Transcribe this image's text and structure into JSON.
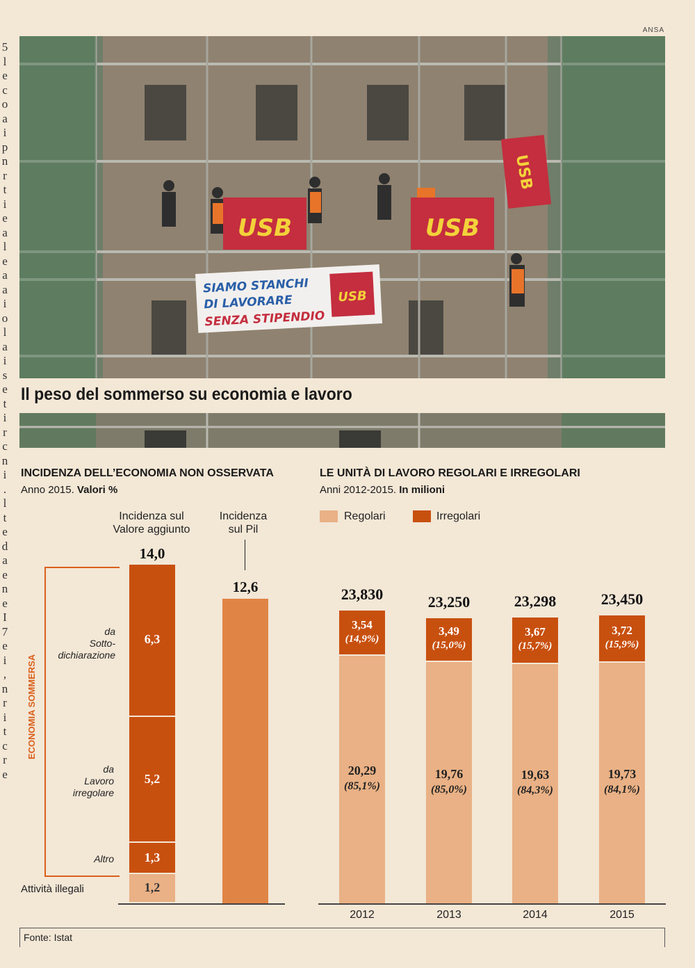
{
  "photo": {
    "credit": "ANSA",
    "banners": {
      "usb": "USB",
      "protest_line1": "SIAMO STANCHI",
      "protest_line2": "DI LAVORARE",
      "protest_line3": "SENZA STIPENDIO"
    }
  },
  "title": "Il peso del sommerso su economia e lavoro",
  "left_section": {
    "title": "INCIDENZA DELL’ECONOMIA NON OSSERVATA",
    "subtitle_plain": "Anno 2015.",
    "subtitle_bold": "Valori %"
  },
  "right_section": {
    "title": "LE UNITÀ DI LAVORO REGOLARI E IRREGOLARI",
    "subtitle_plain": "Anni 2012-2015.",
    "subtitle_bold": "In milioni"
  },
  "source": "Fonte: Istat",
  "colors": {
    "dark_orange": "#c8500f",
    "mid_orange": "#e08445",
    "light": "#e9b185",
    "bracket": "#d9601c"
  },
  "chart_data": [
    {
      "type": "bar",
      "title": "INCIDENZA DELL’ECONOMIA NON OSSERVATA",
      "bars": [
        {
          "name_line1": "Incidenza sul",
          "name_line2": "Valore aggiunto",
          "total": "14,0",
          "segments": [
            {
              "label_line1": "da",
              "label_line2": "Sotto-",
              "label_line3": "dichiarazione",
              "value": 6.3,
              "value_text": "6,3"
            },
            {
              "label_line1": "da",
              "label_line2": "Lavoro",
              "label_line3": "irregolare",
              "value": 5.2,
              "value_text": "5,2"
            },
            {
              "label_line1": "Altro",
              "value": 1.3,
              "value_text": "1,3"
            },
            {
              "label_line1": "Attività illegali",
              "value": 1.2,
              "value_text": "1,2"
            }
          ]
        },
        {
          "name_line1": "Incidenza",
          "name_line2": "sul Pil",
          "total": "12,6",
          "value": 12.6
        }
      ],
      "group_label": "ECONOMIA SOMMERSA"
    },
    {
      "type": "bar",
      "title": "LE UNITÀ DI LAVORO REGOLARI E IRREGOLARI",
      "legend": [
        "Regolari",
        "Irregolari"
      ],
      "categories": [
        "2012",
        "2013",
        "2014",
        "2015"
      ],
      "totals": [
        "23,830",
        "23,250",
        "23,298",
        "23,450"
      ],
      "series": [
        {
          "name": "Regolari",
          "values": [
            20.29,
            19.76,
            19.63,
            19.73
          ],
          "value_text": [
            "20,29",
            "19,76",
            "19,63",
            "19,73"
          ],
          "pct_text": [
            "(85,1%)",
            "(85,0%)",
            "(84,3%)",
            "(84,1%)"
          ]
        },
        {
          "name": "Irregolari",
          "values": [
            3.54,
            3.49,
            3.67,
            3.72
          ],
          "value_text": [
            "3,54",
            "3,49",
            "3,67",
            "3,72"
          ],
          "pct_text": [
            "(14,9%)",
            "(15,0%)",
            "(15,7%)",
            "(15,9%)"
          ]
        }
      ]
    }
  ]
}
